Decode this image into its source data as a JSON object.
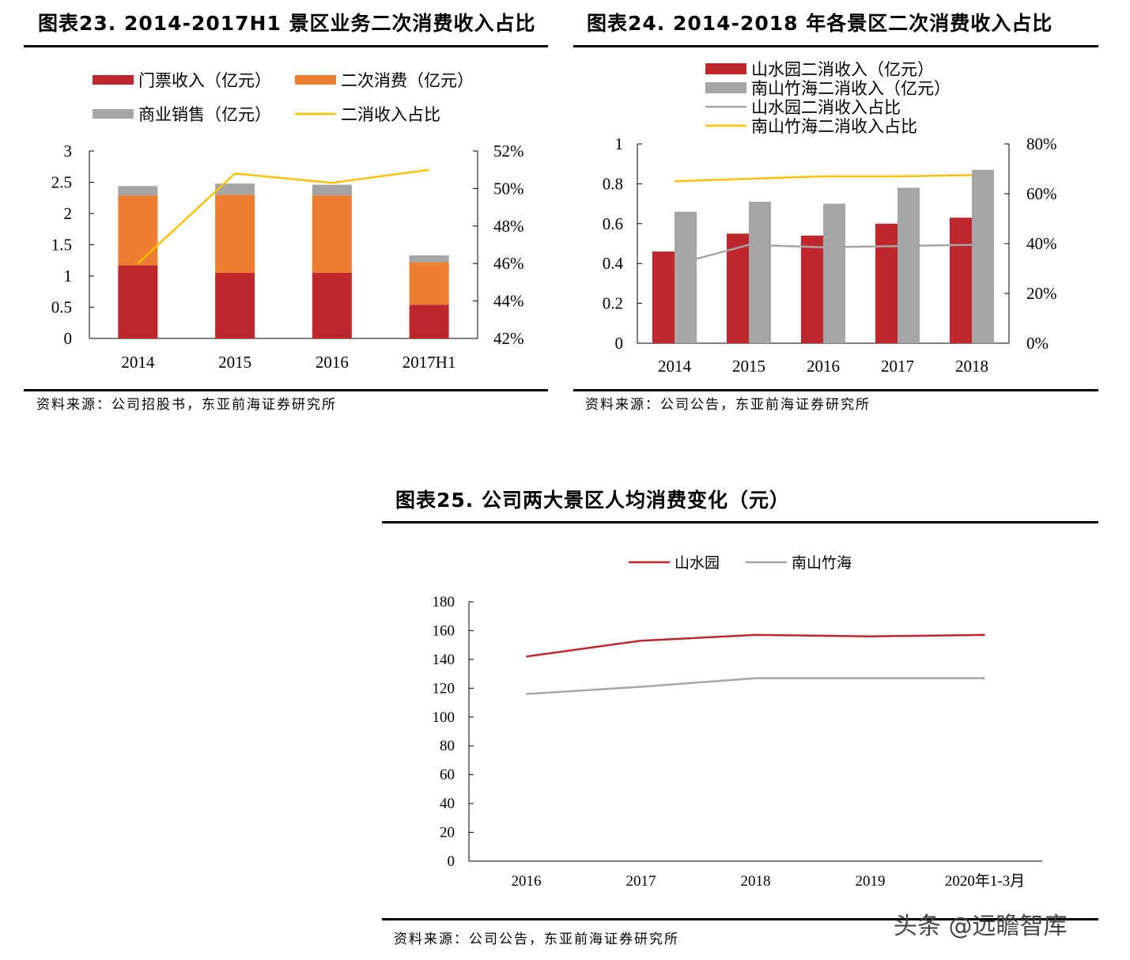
{
  "charts": [
    {
      "title": "图表23. 2014-2017H1 景区业务二次消费收入占比",
      "source": "资料来源：公司招股书，东亚前海证券研究所"
    },
    {
      "title": "图表24. 2014-2018 年各景区二次消费收入占比",
      "source": "资料来源：公司公告，东亚前海证券研究所"
    },
    {
      "title": "图表25. 公司两大景区人均消费变化（元）",
      "source": "资料来源：公司公告，东亚前海证券研究所"
    }
  ],
  "watermark": "头条 @远瞻智库",
  "chart_data": [
    {
      "type": "bar",
      "stacked": true,
      "categories": [
        "2014",
        "2015",
        "2016",
        "2017H1"
      ],
      "ylim": [
        0,
        3
      ],
      "y_ticks": [
        "0",
        "0.5",
        "1",
        "1.5",
        "2",
        "2.5",
        "3"
      ],
      "y2lim": [
        42,
        52
      ],
      "y2_ticks": [
        "42%",
        "44%",
        "46%",
        "48%",
        "50%",
        "52%"
      ],
      "legend_placement": "top",
      "series": [
        {
          "name": "门票收入（亿元）",
          "kind": "bar",
          "color": "#c0272d",
          "values": [
            1.17,
            1.05,
            1.05,
            0.54
          ]
        },
        {
          "name": "二次消费（亿元）",
          "kind": "bar",
          "color": "#ed7d31",
          "values": [
            1.12,
            1.25,
            1.24,
            0.68
          ]
        },
        {
          "name": "商业销售（亿元）",
          "kind": "bar",
          "color": "#a5a5a5",
          "values": [
            0.15,
            0.18,
            0.17,
            0.11
          ]
        },
        {
          "name": "二消收入占比",
          "kind": "line",
          "axis": "right",
          "color": "#ffc000",
          "values": [
            46.0,
            50.8,
            50.3,
            51.0
          ]
        }
      ]
    },
    {
      "type": "bar",
      "categories": [
        "2014",
        "2015",
        "2016",
        "2017",
        "2018"
      ],
      "ylim": [
        0,
        1
      ],
      "y_ticks": [
        "0",
        "0.2",
        "0.4",
        "0.6",
        "0.8",
        "1"
      ],
      "y2lim": [
        0,
        80
      ],
      "y2_ticks": [
        "0%",
        "20%",
        "40%",
        "60%",
        "80%"
      ],
      "legend_placement": "top",
      "series": [
        {
          "name": "山水园二消收入（亿元）",
          "kind": "bar",
          "color": "#c0272d",
          "values": [
            0.46,
            0.55,
            0.54,
            0.6,
            0.63
          ]
        },
        {
          "name": "南山竹海二消收入（亿元）",
          "kind": "bar",
          "color": "#a5a5a5",
          "values": [
            0.66,
            0.71,
            0.7,
            0.78,
            0.87
          ]
        },
        {
          "name": "山水园二消收入占比",
          "kind": "line",
          "axis": "right",
          "color": "#a5a5a5",
          "values": [
            31.5,
            39.5,
            38.5,
            39.0,
            39.5
          ]
        },
        {
          "name": "南山竹海二消收入占比",
          "kind": "line",
          "axis": "right",
          "color": "#ffc000",
          "values": [
            65.0,
            66.0,
            67.0,
            67.0,
            67.5
          ]
        }
      ]
    },
    {
      "type": "line",
      "categories": [
        "2016",
        "2017",
        "2018",
        "2019",
        "2020年1-3月"
      ],
      "ylim": [
        0,
        180
      ],
      "y_ticks": [
        "0",
        "20",
        "40",
        "60",
        "80",
        "100",
        "120",
        "140",
        "160",
        "180"
      ],
      "legend_placement": "top",
      "series": [
        {
          "name": "山水园",
          "color": "#c0272d",
          "values": [
            142,
            153,
            157,
            156,
            157
          ]
        },
        {
          "name": "南山竹海",
          "color": "#a5a5a5",
          "values": [
            116,
            121,
            127,
            127,
            127
          ]
        }
      ]
    }
  ]
}
